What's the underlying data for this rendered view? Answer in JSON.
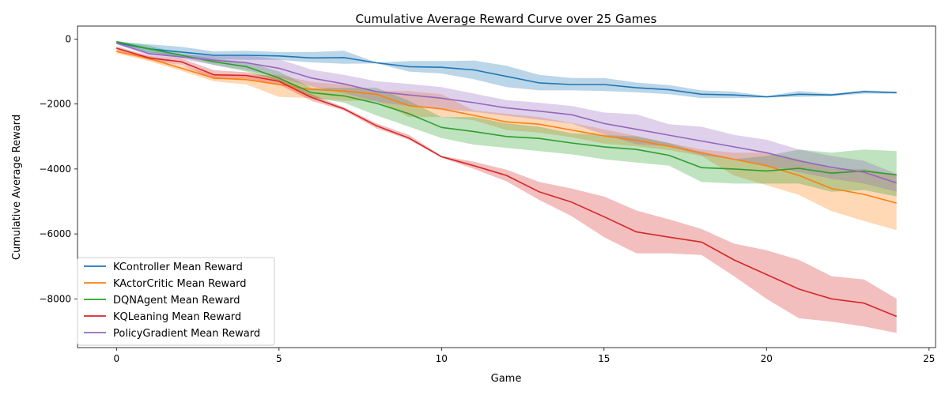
{
  "chart_data": {
    "type": "line",
    "title": "Cumulative Average Reward Curve over 25 Games",
    "xlabel": "Game",
    "ylabel": "Cumulative Average Reward",
    "xlim": [
      -1.2,
      25.2
    ],
    "ylim": [
      -9500,
      400
    ],
    "xticks": [
      0,
      5,
      10,
      15,
      20,
      25
    ],
    "yticks": [
      0,
      -2000,
      -4000,
      -6000,
      -8000
    ],
    "grid": false,
    "legend_position": "lower-left",
    "x": [
      0,
      1,
      2,
      3,
      4,
      5,
      6,
      7,
      8,
      9,
      10,
      11,
      12,
      13,
      14,
      15,
      16,
      17,
      18,
      19,
      20,
      21,
      22,
      23,
      24
    ],
    "series": [
      {
        "name": "KController Mean Reward",
        "color": "#1f77b4",
        "values": [
          -120,
          -300,
          -400,
          -500,
          -500,
          -520,
          -580,
          -570,
          -730,
          -850,
          -870,
          -950,
          -1150,
          -1350,
          -1400,
          -1400,
          -1500,
          -1560,
          -1700,
          -1720,
          -1780,
          -1700,
          -1720,
          -1620,
          -1650
        ],
        "upper": [
          -80,
          -160,
          -240,
          -380,
          -360,
          -400,
          -400,
          -360,
          -720,
          -680,
          -680,
          -660,
          -820,
          -1100,
          -1200,
          -1200,
          -1340,
          -1420,
          -1580,
          -1620,
          -1760,
          -1600,
          -1680,
          -1580,
          -1620
        ],
        "lower": [
          -160,
          -440,
          -560,
          -620,
          -640,
          -640,
          -720,
          -760,
          -750,
          -1000,
          -1060,
          -1240,
          -1480,
          -1580,
          -1580,
          -1600,
          -1640,
          -1700,
          -1820,
          -1820,
          -1800,
          -1780,
          -1760,
          -1680,
          -1680
        ]
      },
      {
        "name": "KActorCritic Mean Reward",
        "color": "#ff7f0e",
        "values": [
          -380,
          -600,
          -900,
          -1200,
          -1250,
          -1400,
          -1550,
          -1600,
          -1700,
          -2050,
          -2150,
          -2350,
          -2550,
          -2620,
          -2800,
          -2980,
          -3120,
          -3300,
          -3500,
          -3700,
          -3900,
          -4200,
          -4600,
          -4780,
          -5050
        ],
        "upper": [
          -320,
          -520,
          -820,
          -1100,
          -1100,
          -1100,
          -1320,
          -1400,
          -1600,
          -1600,
          -1700,
          -2200,
          -2300,
          -2400,
          -2580,
          -2780,
          -2980,
          -3200,
          -3400,
          -3500,
          -3500,
          -3700,
          -4000,
          -4000,
          -4200
        ],
        "lower": [
          -440,
          -680,
          -980,
          -1300,
          -1400,
          -1780,
          -1820,
          -1900,
          -1900,
          -2400,
          -2400,
          -2500,
          -2800,
          -2880,
          -3020,
          -3220,
          -3300,
          -3420,
          -3600,
          -4200,
          -4500,
          -4800,
          -5300,
          -5600,
          -5880
        ]
      },
      {
        "name": "DQNAgent Mean Reward",
        "color": "#2ca02c",
        "values": [
          -80,
          -300,
          -500,
          -700,
          -850,
          -1200,
          -1650,
          -1750,
          -1980,
          -2300,
          -2720,
          -2850,
          -3000,
          -3060,
          -3200,
          -3320,
          -3400,
          -3580,
          -3960,
          -4000,
          -4060,
          -3980,
          -4130,
          -4060,
          -4180
        ],
        "upper": [
          -60,
          -200,
          -450,
          -600,
          -700,
          -1000,
          -1500,
          -1500,
          -1500,
          -1900,
          -2400,
          -2400,
          -2600,
          -2700,
          -2900,
          -2950,
          -3000,
          -3200,
          -3500,
          -3700,
          -3600,
          -3400,
          -3500,
          -3400,
          -3450
        ],
        "lower": [
          -100,
          -400,
          -550,
          -800,
          -1000,
          -1300,
          -1800,
          -1960,
          -2350,
          -2700,
          -3050,
          -3250,
          -3350,
          -3450,
          -3550,
          -3700,
          -3800,
          -3900,
          -4400,
          -4450,
          -4450,
          -4450,
          -4700,
          -4650,
          -4850
        ]
      },
      {
        "name": "KQLeaning Mean Reward",
        "color": "#d62728",
        "values": [
          -280,
          -580,
          -700,
          -1100,
          -1120,
          -1300,
          -1800,
          -2150,
          -2670,
          -3050,
          -3620,
          -3900,
          -4200,
          -4700,
          -5020,
          -5470,
          -5940,
          -6100,
          -6250,
          -6800,
          -7250,
          -7700,
          -8000,
          -8130,
          -8540
        ],
        "upper": [
          -220,
          -520,
          -600,
          -960,
          -1020,
          -1200,
          -1700,
          -2100,
          -2600,
          -2950,
          -3600,
          -3780,
          -4020,
          -4400,
          -4600,
          -4850,
          -5280,
          -5550,
          -5850,
          -6300,
          -6500,
          -6800,
          -7300,
          -7400,
          -8000
        ],
        "lower": [
          -340,
          -640,
          -800,
          -1240,
          -1220,
          -1400,
          -1900,
          -2200,
          -2750,
          -3100,
          -3650,
          -4000,
          -4380,
          -4950,
          -5450,
          -6100,
          -6600,
          -6600,
          -6650,
          -7300,
          -8000,
          -8600,
          -8700,
          -8850,
          -9050
        ]
      },
      {
        "name": "PolicyGradient Mean Reward",
        "color": "#9467bd",
        "values": [
          -120,
          -450,
          -550,
          -650,
          -730,
          -900,
          -1200,
          -1380,
          -1620,
          -1720,
          -1820,
          -1960,
          -2120,
          -2220,
          -2330,
          -2600,
          -2780,
          -2960,
          -3140,
          -3320,
          -3500,
          -3750,
          -3950,
          -4100,
          -4430
        ],
        "upper": [
          -80,
          -380,
          -480,
          -500,
          -500,
          -620,
          -940,
          -1100,
          -1300,
          -1380,
          -1480,
          -1680,
          -1880,
          -1960,
          -2060,
          -2260,
          -2320,
          -2620,
          -2700,
          -2950,
          -3100,
          -3400,
          -3600,
          -3750,
          -4150
        ],
        "lower": [
          -160,
          -520,
          -620,
          -800,
          -960,
          -1180,
          -1460,
          -1660,
          -1940,
          -2060,
          -2160,
          -2240,
          -2360,
          -2480,
          -2600,
          -2940,
          -3240,
          -3300,
          -3580,
          -3700,
          -3900,
          -4100,
          -4300,
          -4450,
          -4700
        ]
      }
    ]
  }
}
